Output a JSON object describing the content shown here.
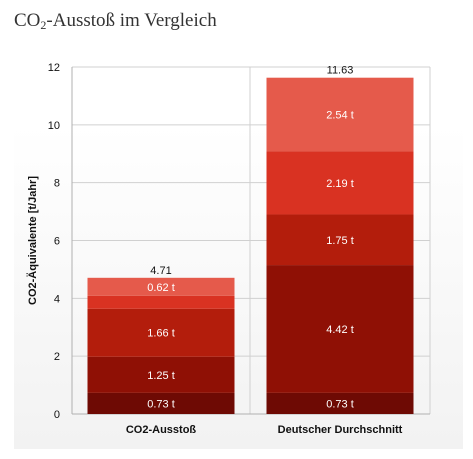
{
  "title": {
    "main": "CO",
    "sub": "2",
    "rest": "-Ausstoß im Vergleich"
  },
  "colors": {
    "segments": [
      "#6e0a04",
      "#8f1005",
      "#b31d0c",
      "#d93222",
      "#e55a4b"
    ],
    "grid": "#d0d0d0",
    "axis": "#b0b0b0"
  },
  "chart_data": {
    "type": "bar",
    "stacked": true,
    "ylabel": "CO2-Äquivalente [t/Jahr]",
    "ylim": [
      0,
      12
    ],
    "yticks": [
      0,
      2,
      4,
      6,
      8,
      10,
      12
    ],
    "grid": true,
    "categories": [
      "CO2-Ausstoß",
      "Deutscher Durchschnitt"
    ],
    "totals": [
      "4.71",
      "11.63"
    ],
    "stacks": [
      [
        {
          "value": 0.73,
          "label": "0.73 t"
        },
        {
          "value": 1.25,
          "label": "1.25 t"
        },
        {
          "value": 1.66,
          "label": "1.66 t"
        },
        {
          "value": 0.45,
          "label": ""
        },
        {
          "value": 0.62,
          "label": "0.62 t"
        }
      ],
      [
        {
          "value": 0.73,
          "label": "0.73 t"
        },
        {
          "value": 4.42,
          "label": "4.42 t"
        },
        {
          "value": 1.75,
          "label": "1.75 t"
        },
        {
          "value": 2.19,
          "label": "2.19 t"
        },
        {
          "value": 2.54,
          "label": "2.54 t"
        }
      ]
    ]
  }
}
